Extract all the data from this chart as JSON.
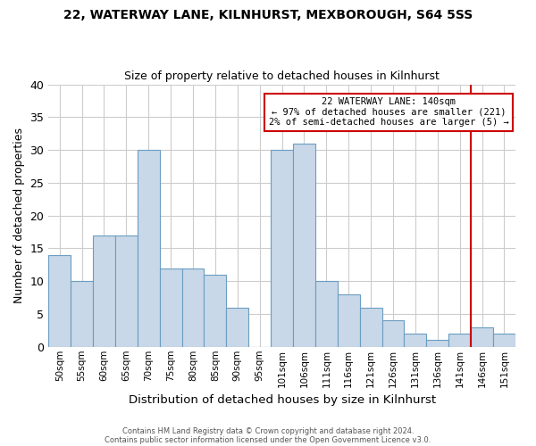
{
  "title": "22, WATERWAY LANE, KILNHURST, MEXBOROUGH, S64 5SS",
  "subtitle": "Size of property relative to detached houses in Kilnhurst",
  "xlabel": "Distribution of detached houses by size in Kilnhurst",
  "ylabel": "Number of detached properties",
  "bar_labels": [
    "50sqm",
    "55sqm",
    "60sqm",
    "65sqm",
    "70sqm",
    "75sqm",
    "80sqm",
    "85sqm",
    "90sqm",
    "95sqm",
    "101sqm",
    "106sqm",
    "111sqm",
    "116sqm",
    "121sqm",
    "126sqm",
    "131sqm",
    "136sqm",
    "141sqm",
    "146sqm",
    "151sqm"
  ],
  "bar_values": [
    14,
    10,
    17,
    17,
    30,
    12,
    12,
    11,
    6,
    0,
    30,
    31,
    10,
    8,
    6,
    4,
    2,
    1,
    2,
    3,
    2
  ],
  "bar_color": "#c8d8e8",
  "bar_edge_color": "#6b9dc2",
  "ylim": [
    0,
    40
  ],
  "yticks": [
    0,
    5,
    10,
    15,
    20,
    25,
    30,
    35,
    40
  ],
  "vline_color": "#cc0000",
  "annotation_title": "22 WATERWAY LANE: 140sqm",
  "annotation_line1": "← 97% of detached houses are smaller (221)",
  "annotation_line2": "2% of semi-detached houses are larger (5) →",
  "annotation_box_color": "#cc0000",
  "footnote1": "Contains HM Land Registry data © Crown copyright and database right 2024.",
  "footnote2": "Contains public sector information licensed under the Open Government Licence v3.0.",
  "bg_color": "#ffffff",
  "grid_color": "#cccccc"
}
